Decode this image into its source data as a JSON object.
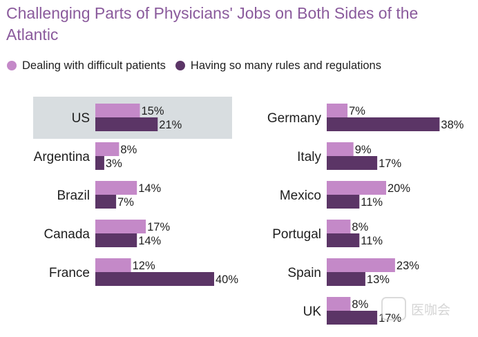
{
  "title": "Challenging Parts of Physicians' Jobs on Both Sides of the Atlantic",
  "legend": [
    {
      "label": "Dealing with difficult patients",
      "color": "#c489c8"
    },
    {
      "label": "Having so many rules and regulations",
      "color": "#5b3566"
    }
  ],
  "colors": {
    "highlight": "#d8dde0",
    "text": "#1e1e1e",
    "title": "#8a5a9c"
  },
  "watermark_text": "医咖会",
  "chart_data": {
    "type": "bar",
    "orientation": "horizontal",
    "value_suffix": "%",
    "series": [
      {
        "name": "Dealing with difficult patients"
      },
      {
        "name": "Having so many rules and regulations"
      }
    ],
    "panels": [
      {
        "categories": [
          "US",
          "Argentina",
          "Brazil",
          "Canada",
          "France"
        ],
        "highlight": "US",
        "difficult_patients": [
          15,
          8,
          14,
          17,
          12
        ],
        "rules_regulations": [
          21,
          3,
          7,
          14,
          40
        ]
      },
      {
        "categories": [
          "Germany",
          "Italy",
          "Mexico",
          "Portugal",
          "Spain",
          "UK"
        ],
        "difficult_patients": [
          7,
          9,
          20,
          8,
          23,
          8
        ],
        "rules_regulations": [
          38,
          17,
          11,
          11,
          13,
          17
        ]
      }
    ]
  }
}
